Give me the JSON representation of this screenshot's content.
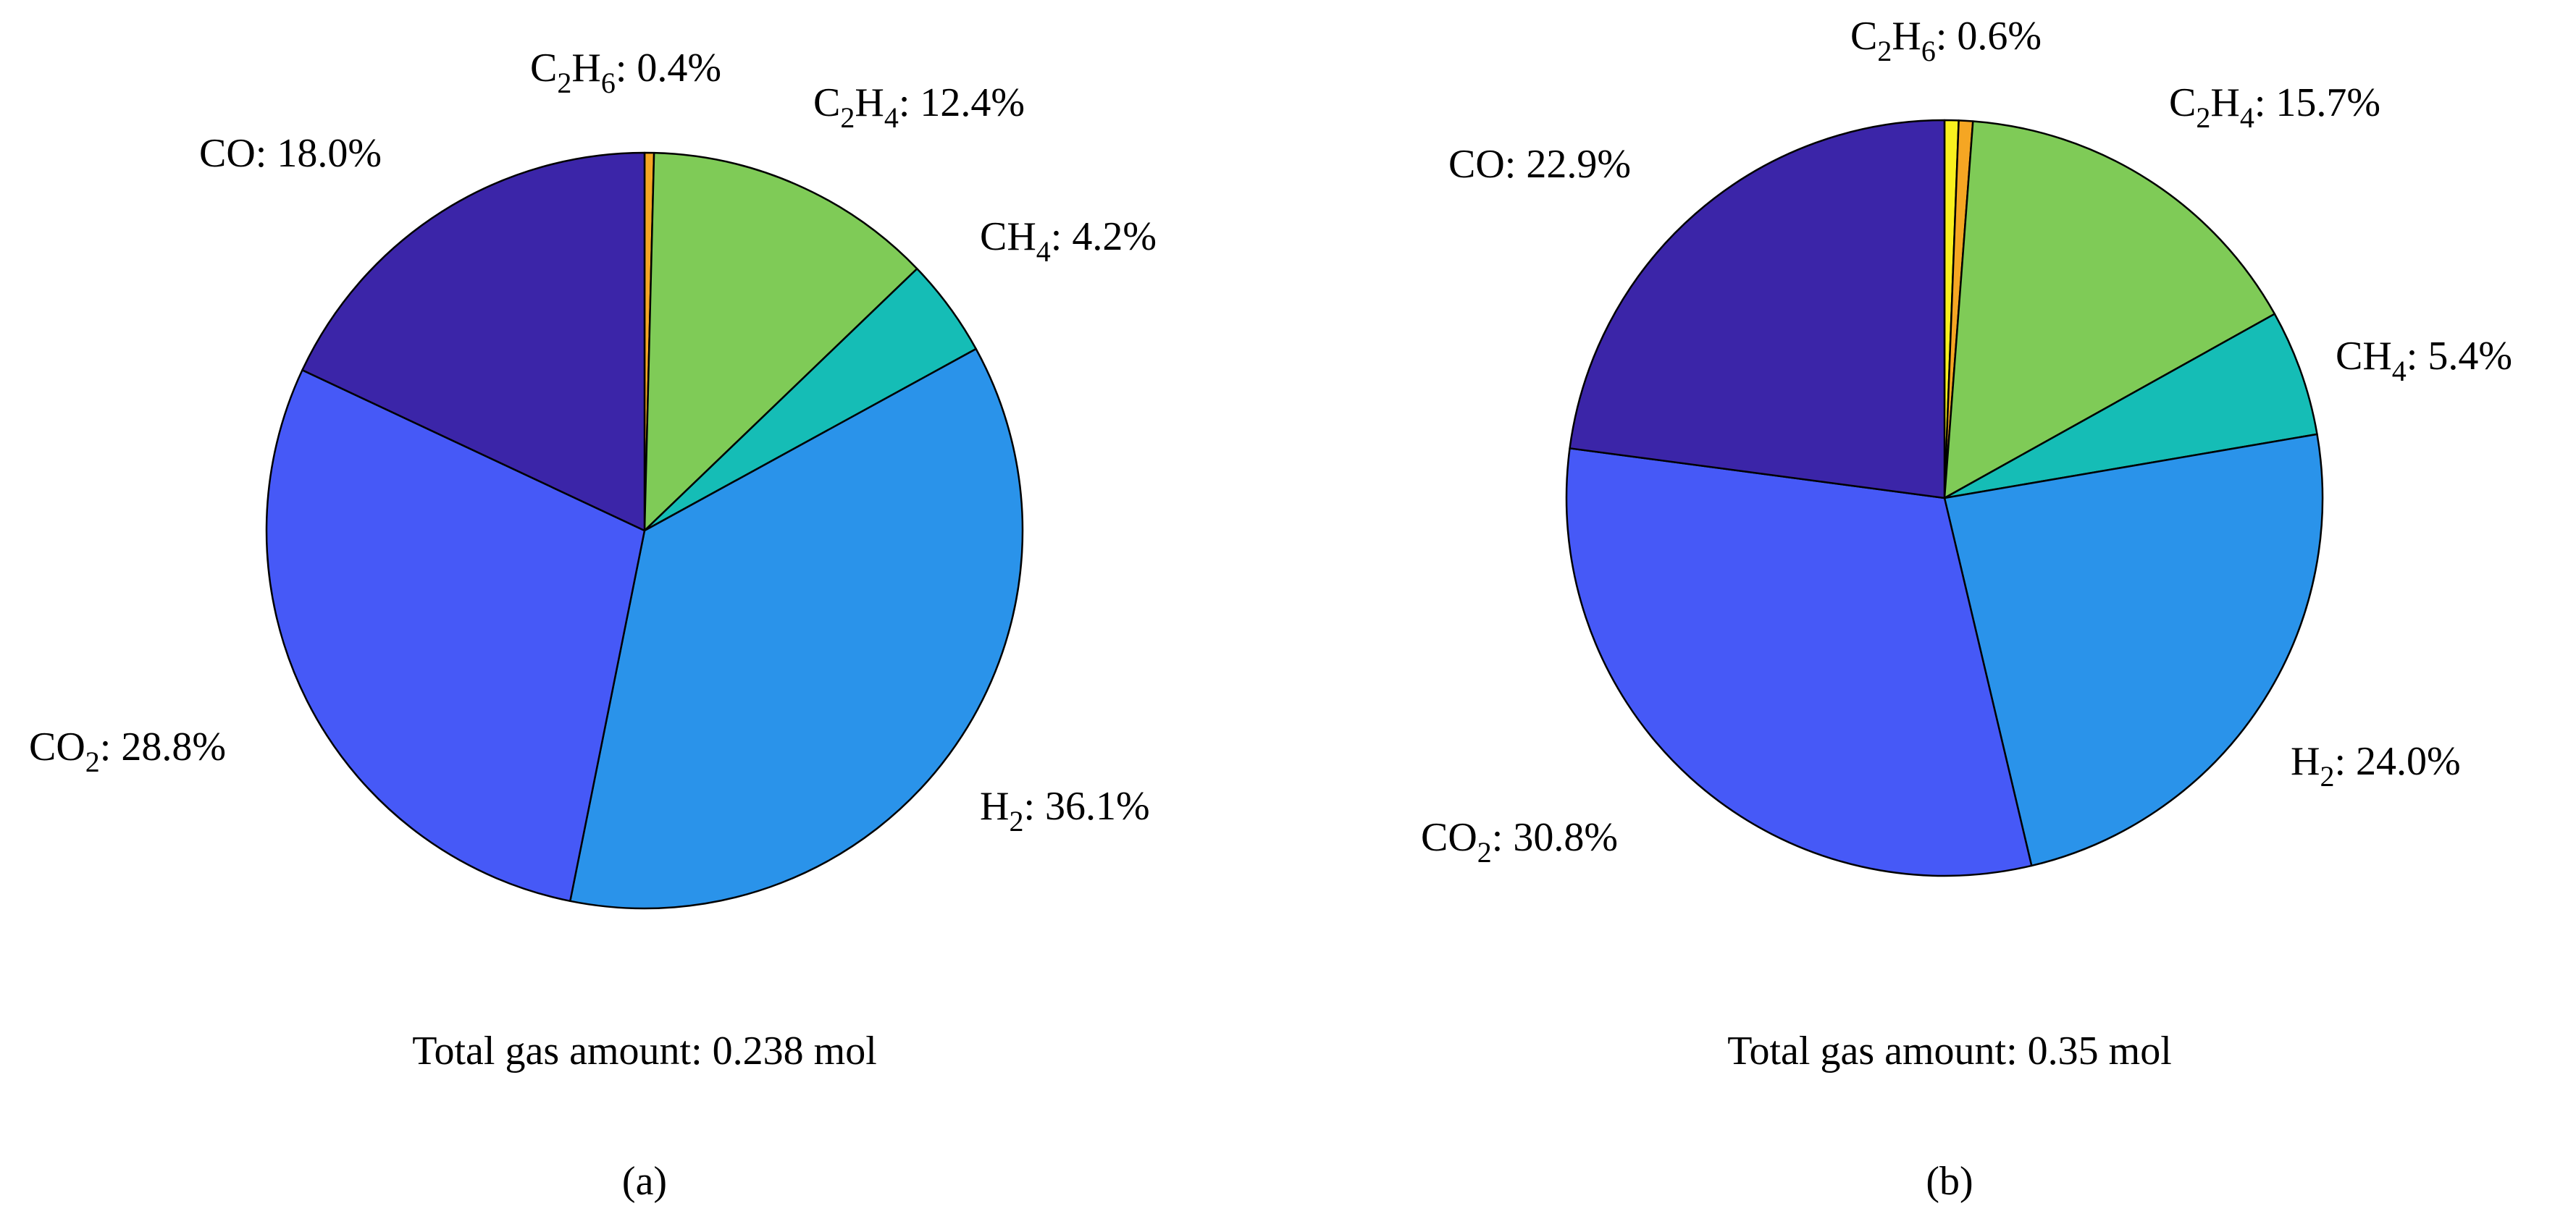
{
  "chart_data": [
    {
      "type": "pie",
      "panel_label": "(a)",
      "caption": "Total gas amount: 0.238 mol",
      "slices": [
        {
          "base": "C",
          "sub": "2",
          "base2": "H",
          "sub2": "6",
          "value": 0.4,
          "value_text": ": 0.4%",
          "color": "#F5A623"
        },
        {
          "base": "C",
          "sub": "2",
          "base2": "H",
          "sub2": "4",
          "value": 12.4,
          "value_text": ": 12.4%",
          "color": "#7FCB57"
        },
        {
          "base": "CH",
          "sub": "4",
          "base2": "",
          "sub2": "",
          "value": 4.2,
          "value_text": ": 4.2%",
          "color": "#15BDB6"
        },
        {
          "base": "H",
          "sub": "2",
          "base2": "",
          "sub2": "",
          "value": 36.1,
          "value_text": ": 36.1%",
          "color": "#2A93EA"
        },
        {
          "base": "CO",
          "sub": "2",
          "base2": "",
          "sub2": "",
          "value": 28.8,
          "value_text": ": 28.8%",
          "color": "#4659F7"
        },
        {
          "base": "CO",
          "sub": "",
          "base2": "",
          "sub2": "",
          "value": 18.0,
          "value_text": ": 18.0%",
          "color": "#3B25A8"
        }
      ]
    },
    {
      "type": "pie",
      "panel_label": "(b)",
      "caption": "Total gas amount: 0.35 mol",
      "slices": [
        {
          "base": "",
          "sub": "",
          "base2": "",
          "sub2": "",
          "value": 0.6,
          "value_text": "",
          "color": "#F9F01E"
        },
        {
          "base": "C",
          "sub": "2",
          "base2": "H",
          "sub2": "6",
          "value": 0.6,
          "value_text": ": 0.6%",
          "color": "#F5A623"
        },
        {
          "base": "C",
          "sub": "2",
          "base2": "H",
          "sub2": "4",
          "value": 15.7,
          "value_text": ": 15.7%",
          "color": "#7FCB57"
        },
        {
          "base": "CH",
          "sub": "4",
          "base2": "",
          "sub2": "",
          "value": 5.4,
          "value_text": ": 5.4%",
          "color": "#15BDB6"
        },
        {
          "base": "H",
          "sub": "2",
          "base2": "",
          "sub2": "",
          "value": 24.0,
          "value_text": ": 24.0%",
          "color": "#2A93EA"
        },
        {
          "base": "CO",
          "sub": "2",
          "base2": "",
          "sub2": "",
          "value": 30.8,
          "value_text": ": 30.8%",
          "color": "#4659F7"
        },
        {
          "base": "CO",
          "sub": "",
          "base2": "",
          "sub2": "",
          "value": 22.9,
          "value_text": ": 22.9%",
          "color": "#3B25A8"
        }
      ]
    }
  ]
}
